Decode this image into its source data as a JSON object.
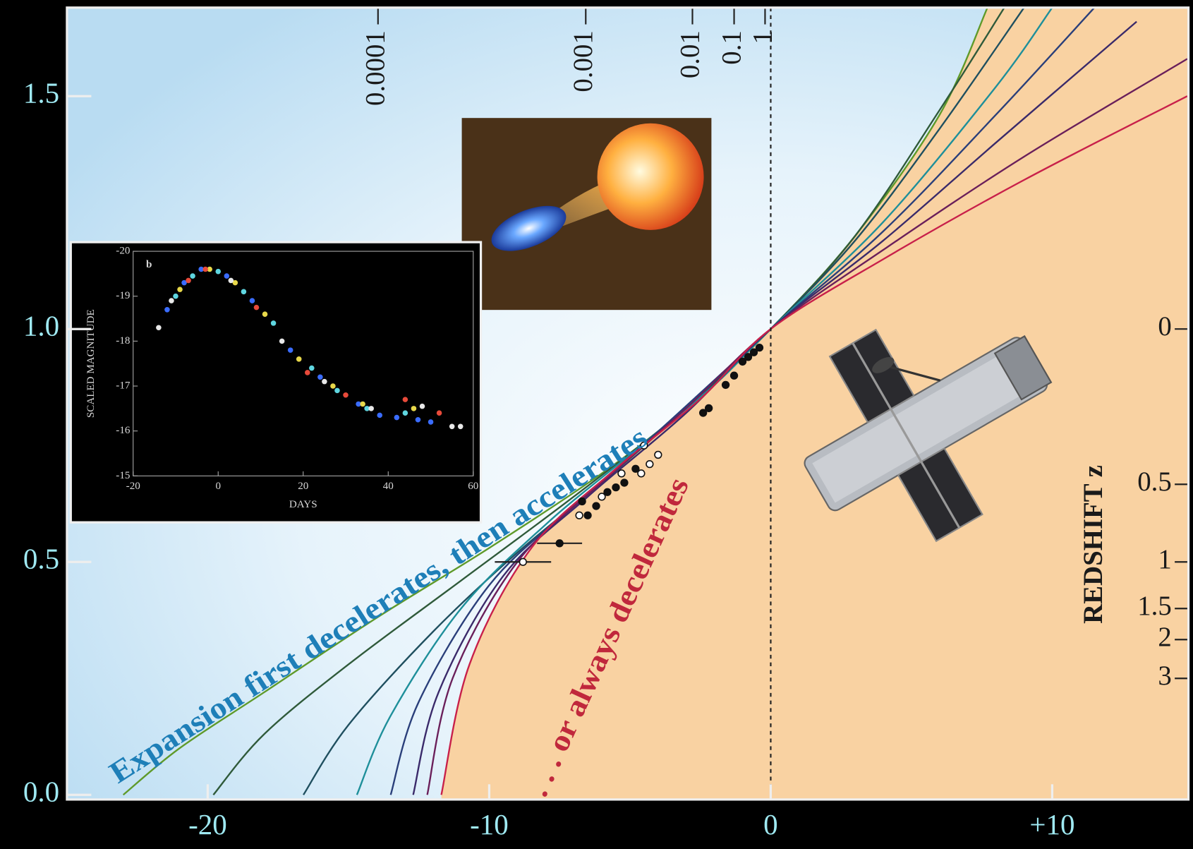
{
  "chart_data": [
    {
      "type": "line",
      "xlim": [
        -25,
        14.84
      ],
      "ylim": [
        -0.01,
        1.69
      ],
      "xticks": [
        -20,
        -10,
        0,
        {
          "value": 10,
          "label": "+10"
        }
      ],
      "yticks": [
        {
          "value": 0,
          "label": "0.0"
        },
        0.5,
        {
          "value": 1,
          "label": "1.0"
        },
        1.5
      ],
      "y2ticks": [
        0,
        0.5,
        1,
        1.5,
        2,
        3
      ],
      "y2scale": "reciprocal",
      "y2label": "REDSHIFT z",
      "x2ticks": [
        0.0001,
        0.001,
        0.01,
        0.1,
        1
      ],
      "x2tick_positions": [
        -13.95,
        -6.57,
        -2.78,
        -1.3,
        -0.2
      ],
      "annotations": [
        "Expansion first decelerates, then accelerates",
        ". . . or always decelerates"
      ],
      "series": [
        {
          "color": "#5f9a2a",
          "x": [
            -23,
            -21,
            -18,
            -14,
            -10,
            -6,
            -3,
            0,
            3,
            6,
            7.7
          ],
          "values": [
            0,
            0.1,
            0.22,
            0.38,
            0.53,
            0.69,
            0.83,
            1,
            1.2,
            1.46,
            1.69
          ]
        },
        {
          "color": "#2f5a3a",
          "x": [
            -19.8,
            -18,
            -15,
            -11,
            -7,
            -3,
            0,
            3,
            6,
            8.3
          ],
          "values": [
            0,
            0.13,
            0.28,
            0.46,
            0.64,
            0.83,
            1,
            1.2,
            1.47,
            1.69
          ]
        },
        {
          "color": "#1f4f5f",
          "x": [
            -16.6,
            -15,
            -12,
            -9,
            -6,
            -3,
            0,
            3,
            6,
            9
          ],
          "values": [
            0,
            0.15,
            0.35,
            0.52,
            0.67,
            0.83,
            1,
            1.19,
            1.43,
            1.69
          ]
        },
        {
          "color": "#1e8f9a",
          "x": [
            -14.7,
            -13.5,
            -11,
            -8,
            -5,
            -2,
            0,
            4,
            8,
            10
          ],
          "values": [
            0,
            0.17,
            0.4,
            0.58,
            0.73,
            0.88,
            1,
            1.23,
            1.52,
            1.69
          ]
        },
        {
          "color": "#2a3f7a",
          "x": [
            -13.5,
            -12.5,
            -10,
            -7,
            -4,
            0,
            4,
            8,
            11.5
          ],
          "values": [
            0,
            0.2,
            0.45,
            0.62,
            0.78,
            1,
            1.21,
            1.46,
            1.69
          ]
        },
        {
          "color": "#3a2a6a",
          "x": [
            -12.7,
            -11.8,
            -9.5,
            -6.5,
            -3,
            0,
            4,
            8,
            13
          ],
          "values": [
            0,
            0.22,
            0.47,
            0.64,
            0.82,
            1,
            1.19,
            1.4,
            1.66
          ]
        },
        {
          "color": "#6a1f5a",
          "x": [
            -12.2,
            -11.3,
            -9,
            -6,
            -3,
            0,
            4,
            9,
            14.8
          ],
          "values": [
            0,
            0.25,
            0.5,
            0.67,
            0.83,
            1,
            1.17,
            1.37,
            1.58
          ]
        },
        {
          "color": "#c8204a",
          "x": [
            -11.7,
            -10.7,
            -8.5,
            -5.5,
            -2.5,
            0,
            4,
            9,
            14.8
          ],
          "values": [
            0,
            0.28,
            0.53,
            0.7,
            0.85,
            1,
            1.15,
            1.32,
            1.5
          ]
        },
        {
          "color": "#111111",
          "marker": "filled",
          "x": [
            -2.4,
            -2.2,
            -1.6,
            -1.3,
            -1.0,
            -0.8,
            -0.6,
            -0.4,
            -6.7,
            -6.2,
            -5.8,
            -5.5,
            -5.2,
            -4.8,
            -6.5
          ],
          "values": [
            0.82,
            0.83,
            0.88,
            0.9,
            0.93,
            0.94,
            0.95,
            0.96,
            0.63,
            0.62,
            0.65,
            0.66,
            0.67,
            0.7,
            0.6
          ]
        },
        {
          "color": "#ffffff",
          "marker": "open",
          "x": [
            -6.8,
            -6.0,
            -5.3,
            -4.6,
            -4.3,
            -4.0,
            -4.5
          ],
          "values": [
            0.6,
            0.64,
            0.69,
            0.69,
            0.71,
            0.73,
            0.75
          ]
        },
        {
          "color": "#ffffff",
          "marker": "open",
          "x": [
            -8.8
          ],
          "values": [
            0.5
          ],
          "xerr": [
            1.0
          ]
        },
        {
          "color": "#111111",
          "marker": "filled",
          "x": [
            -7.5
          ],
          "values": [
            0.54
          ],
          "xerr": [
            0.8
          ]
        }
      ]
    },
    {
      "type": "scatter",
      "label": "b",
      "xlabel": "DAYS",
      "ylabel": "SCALED MAGNITUDE",
      "xlim": [
        -20,
        60
      ],
      "ylim": [
        -20,
        -15
      ],
      "y_inverted": true,
      "xticks": [
        -20,
        0,
        20,
        40,
        60
      ],
      "yticks": [
        -20,
        -19,
        -18,
        -17,
        -16,
        -15
      ],
      "series": [
        {
          "color": "#3a6cff",
          "x": [
            -12,
            -8,
            -4,
            2,
            8,
            17,
            24,
            33,
            38,
            42,
            47,
            50
          ],
          "values": [
            -18.7,
            -19.3,
            -19.6,
            -19.45,
            -18.9,
            -17.8,
            -17.2,
            -16.6,
            -16.35,
            -16.3,
            -16.25,
            -16.2
          ]
        },
        {
          "color": "#5fd6e0",
          "x": [
            -10,
            -6,
            0,
            6,
            13,
            22,
            28,
            35,
            44
          ],
          "values": [
            -19.0,
            -19.45,
            -19.55,
            -19.1,
            -18.4,
            -17.4,
            -16.9,
            -16.5,
            -16.4
          ]
        },
        {
          "color": "#e8d84a",
          "x": [
            -9,
            -2,
            4,
            11,
            19,
            27,
            34,
            46
          ],
          "values": [
            -19.15,
            -19.6,
            -19.3,
            -18.6,
            -17.6,
            -17.0,
            -16.6,
            -16.5
          ]
        },
        {
          "color": "#e84a3a",
          "x": [
            -7,
            -3,
            9,
            21,
            30,
            44,
            52
          ],
          "values": [
            -19.35,
            -19.6,
            -18.75,
            -17.3,
            -16.8,
            -16.7,
            -16.4
          ]
        },
        {
          "color": "#e8e8e8",
          "x": [
            -14,
            -11,
            3,
            15,
            25,
            36,
            48,
            55,
            57
          ],
          "values": [
            -18.3,
            -18.9,
            -19.35,
            -18.0,
            -17.1,
            -16.5,
            -16.55,
            -16.1,
            -16.1
          ]
        }
      ]
    }
  ]
}
